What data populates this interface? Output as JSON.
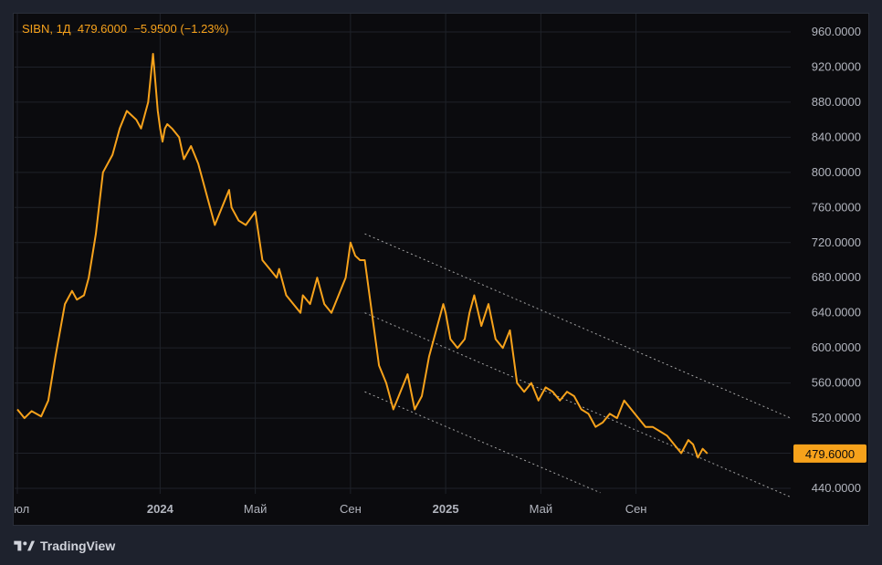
{
  "legend": {
    "symbol": "SIBN",
    "interval": "1Д",
    "price": "479.6000",
    "change": "−5.9500",
    "change_pct": "(−1.23%)"
  },
  "brand": "TradingView",
  "colors": {
    "line": "#f7a21b",
    "background": "#0b0b0e",
    "grid": "#1f2229",
    "axis_text": "#b2b5be",
    "channel": "#c8c8c8"
  },
  "chart_data": {
    "type": "line",
    "ylim": [
      440,
      960
    ],
    "y_ticks": [
      "960.0000",
      "920.0000",
      "880.0000",
      "840.0000",
      "800.0000",
      "760.0000",
      "720.0000",
      "680.0000",
      "640.0000",
      "600.0000",
      "560.0000",
      "520.0000",
      "480.0000",
      "440.0000"
    ],
    "x_ticks": [
      {
        "label": "Июл",
        "x": 0,
        "bold": false
      },
      {
        "label": "2024",
        "x": 6,
        "bold": true
      },
      {
        "label": "Май",
        "x": 10,
        "bold": false
      },
      {
        "label": "Сен",
        "x": 14,
        "bold": false
      },
      {
        "label": "2025",
        "x": 18,
        "bold": true
      },
      {
        "label": "Май",
        "x": 22,
        "bold": false
      },
      {
        "label": "Сен",
        "x": 26,
        "bold": false
      }
    ],
    "current_price": 479.6,
    "current_price_label": "479.6000",
    "series": [
      {
        "x": [
          0,
          0.3,
          0.6,
          1.0,
          1.3,
          1.6,
          2.0,
          2.3,
          2.5,
          2.8,
          3.0,
          3.3,
          3.6,
          4.0,
          4.3,
          4.6,
          5.0,
          5.2,
          5.5,
          5.7,
          5.9,
          6.0,
          6.1,
          6.2,
          6.3,
          6.5,
          6.8,
          7.0,
          7.3,
          7.6,
          8.0,
          8.3,
          8.6,
          8.9,
          9.0,
          9.3,
          9.6,
          10.0,
          10.3,
          10.6,
          10.9,
          11.0,
          11.3,
          11.6,
          11.9,
          12.0,
          12.3,
          12.6,
          12.9,
          13.2,
          13.5,
          13.8,
          14.0,
          14.2,
          14.4,
          14.6,
          14.9,
          15.2,
          15.5,
          15.8,
          16.1,
          16.4,
          16.7,
          17.0,
          17.3,
          17.6,
          17.9,
          18.0,
          18.2,
          18.5,
          18.8,
          19.0,
          19.2,
          19.5,
          19.8,
          20.1,
          20.4,
          20.7,
          21.0,
          21.3,
          21.6,
          21.9,
          22.2,
          22.5,
          22.8,
          23.1,
          23.4,
          23.7,
          24.0,
          24.3,
          24.6,
          24.9,
          25.2,
          25.5,
          25.8,
          26.1,
          26.4,
          26.7,
          27.0,
          27.3,
          27.6,
          27.9,
          28.2,
          28.4,
          28.6,
          28.8,
          29.0
        ],
        "y": [
          530,
          520,
          528,
          522,
          540,
          590,
          650,
          665,
          655,
          660,
          680,
          730,
          800,
          820,
          850,
          870,
          860,
          850,
          880,
          935,
          870,
          850,
          835,
          850,
          855,
          850,
          840,
          815,
          830,
          810,
          770,
          740,
          760,
          780,
          760,
          745,
          740,
          755,
          700,
          690,
          680,
          690,
          660,
          650,
          640,
          660,
          650,
          680,
          650,
          640,
          660,
          680,
          720,
          705,
          700,
          700,
          640,
          580,
          560,
          530,
          550,
          570,
          530,
          545,
          590,
          620,
          650,
          640,
          610,
          600,
          610,
          640,
          660,
          625,
          650,
          610,
          600,
          620,
          560,
          550,
          560,
          540,
          555,
          550,
          540,
          550,
          545,
          530,
          525,
          510,
          515,
          525,
          520,
          540,
          530,
          520,
          510,
          510,
          505,
          500,
          490,
          480,
          495,
          490,
          475,
          485,
          479.6
        ]
      }
    ],
    "channel": {
      "upper": [
        [
          14.6,
          730
        ],
        [
          32.5,
          520
        ]
      ],
      "middle": [
        [
          14.6,
          640
        ],
        [
          32.5,
          430
        ]
      ],
      "lower": [
        [
          14.6,
          550
        ],
        [
          24.5,
          435
        ]
      ]
    }
  }
}
